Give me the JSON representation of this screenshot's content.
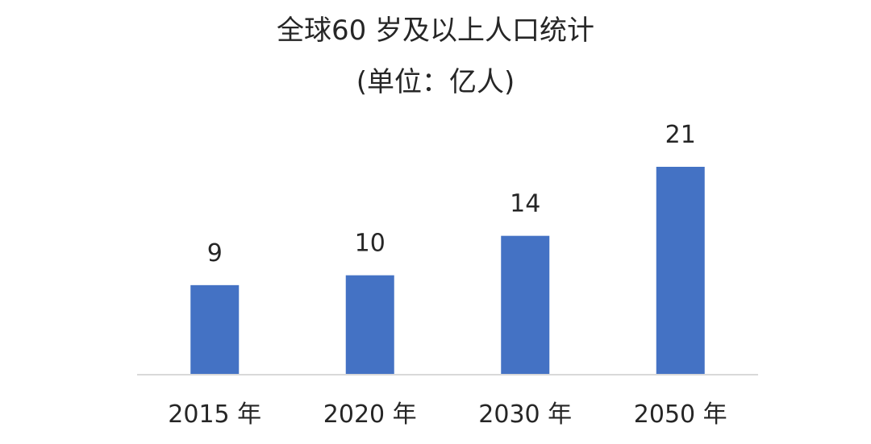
{
  "chart_data": {
    "type": "bar",
    "title": "全球60 岁及以上人口统计",
    "subtitle": "(单位：亿人)",
    "categories": [
      "2015 年",
      "2020 年",
      "2030 年",
      "2050 年"
    ],
    "values": [
      9,
      10,
      14,
      21
    ],
    "data_labels": [
      "9",
      "10",
      "14",
      "21"
    ],
    "xlabel": "",
    "ylabel": "",
    "ylim": [
      0,
      21
    ],
    "grid": false,
    "legend": "none",
    "colors": {
      "bar": "#4472C4",
      "axis": "#D9D9D9",
      "text": "#262626"
    }
  }
}
